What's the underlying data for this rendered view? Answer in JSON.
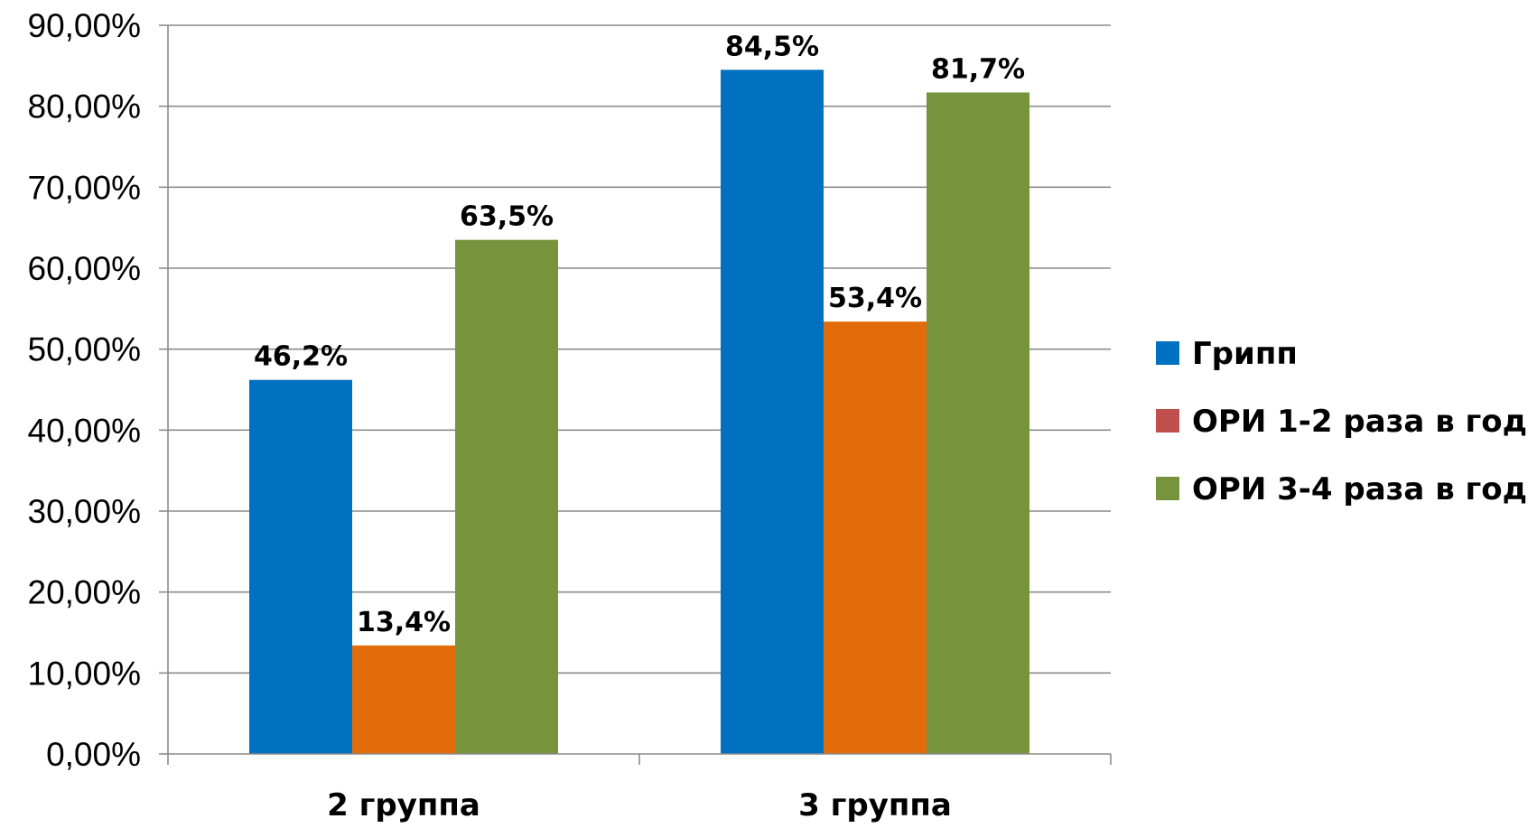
{
  "chart_data": {
    "type": "bar",
    "categories": [
      "2 группа",
      "3 группа"
    ],
    "series": [
      {
        "name": "Грипп",
        "color": "#0070C0",
        "values": [
          46.2,
          84.5
        ],
        "labels": [
          "46,2%",
          "84,5%"
        ]
      },
      {
        "name": "ОРИ 1-2 раза в год",
        "color": "#E36C0A",
        "legend_color": "#C0504D",
        "values": [
          13.4,
          53.4
        ],
        "labels": [
          "13,4%",
          "53,4%"
        ]
      },
      {
        "name": "ОРИ 3-4 раза в год",
        "color": "#77933C",
        "values": [
          63.5,
          81.7
        ],
        "labels": [
          "63,5%",
          "81,7%"
        ]
      }
    ],
    "y_ticks": [
      "0,00%",
      "10,00%",
      "20,00%",
      "30,00%",
      "40,00%",
      "50,00%",
      "60,00%",
      "70,00%",
      "80,00%",
      "90,00%"
    ],
    "ylim": [
      0,
      90
    ],
    "grid": true,
    "legend_position": "right"
  }
}
